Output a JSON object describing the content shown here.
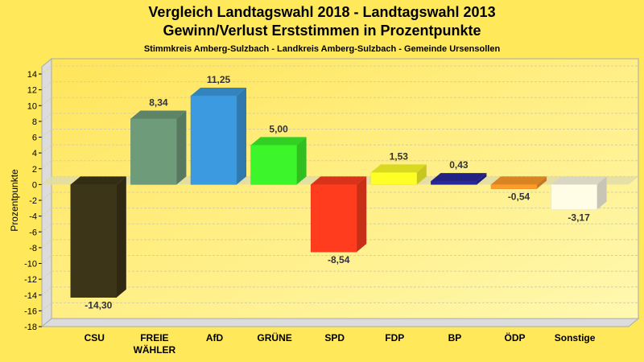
{
  "chart_data": {
    "type": "bar",
    "title": "Vergleich Landtagswahl 2018 - Landtagswahl 2013",
    "subtitle": "Gewinn/Verlust Erststimmen in Prozentpunkte",
    "subsubtitle": "Stimmkreis Amberg-Sulzbach - Landkreis Amberg-Sulzbach - Gemeinde Ursensollen",
    "xlabel": "",
    "ylabel": "Prozentpunkte",
    "ylim": [
      -18,
      14
    ],
    "yticks": [
      14,
      12,
      10,
      8,
      6,
      4,
      2,
      0,
      -2,
      -4,
      -6,
      -8,
      -10,
      -12,
      -14,
      -16,
      -18
    ],
    "grid": true,
    "legend": "none",
    "style": "3d-bar",
    "categories": [
      [
        "CSU"
      ],
      [
        "FREIE",
        "WÄHLER"
      ],
      [
        "AfD"
      ],
      [
        "GRÜNE"
      ],
      [
        "SPD"
      ],
      [
        "FDP"
      ],
      [
        "BP"
      ],
      [
        "ÖDP"
      ],
      [
        "Sonstige"
      ]
    ],
    "values": [
      -14.3,
      8.34,
      11.25,
      5.0,
      -8.54,
      1.53,
      0.43,
      -0.54,
      -3.17
    ],
    "labels": [
      "-14,30",
      "8,34",
      "11,25",
      "5,00",
      "-8,54",
      "1,53",
      "0,43",
      "-0,54",
      "-3,17"
    ],
    "colors": [
      "#3C3518",
      "#6E9B7A",
      "#3C9BE0",
      "#3CF52A",
      "#FF3C1E",
      "#FFFF28",
      "#28289B",
      "#FF9B28",
      "#FFFDE6"
    ]
  }
}
